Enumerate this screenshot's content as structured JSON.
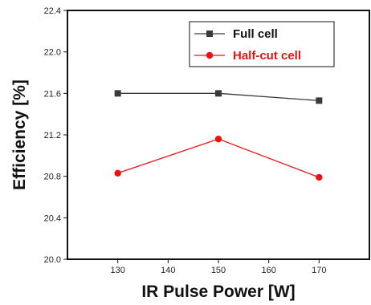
{
  "chart_data": {
    "type": "line",
    "x": [
      130,
      150,
      170
    ],
    "xlabel": "IR Pulse Power  [W]",
    "ylabel": "Efficiency  [%]",
    "xlim": [
      120,
      180
    ],
    "ylim": [
      20.0,
      22.4
    ],
    "xticks": [
      130,
      140,
      150,
      160,
      170
    ],
    "xtick_labels": [
      "130",
      "140",
      "150",
      "160",
      "170"
    ],
    "yticks": [
      20.0,
      20.4,
      20.8,
      21.2,
      21.6,
      22.0,
      22.4
    ],
    "ytick_labels": [
      "20.0",
      "20.4",
      "20.8",
      "21.2",
      "21.6",
      "22.0",
      "22.4"
    ],
    "grid": false,
    "legend_position": "top-right",
    "series": [
      {
        "name": "Full cell",
        "values": [
          21.6,
          21.6,
          21.53
        ],
        "color": "#3a3a3a",
        "marker": "square"
      },
      {
        "name": "Half-cut cell",
        "values": [
          20.83,
          21.16,
          20.79
        ],
        "color": "#ee1111",
        "marker": "circle"
      }
    ]
  }
}
